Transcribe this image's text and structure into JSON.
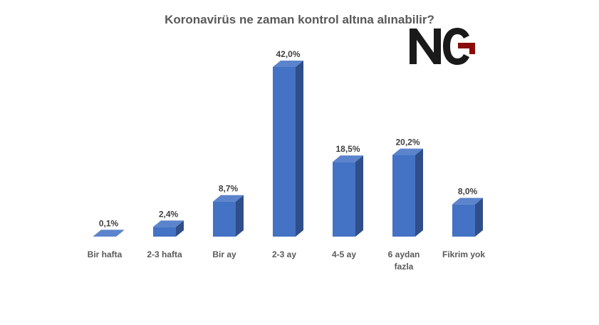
{
  "logo_text": "NG",
  "colors": {
    "bar_front": "#4472C4",
    "bar_side": "#2F4E8A",
    "bar_top": "#5B84CC",
    "logo_black": "#1a1a1a",
    "logo_red": "#8B0A0A"
  },
  "chart_data": {
    "type": "bar",
    "title": "Koronavirüs ne zaman kontrol altına alınabilir?",
    "categories": [
      [
        "Bir hafta"
      ],
      [
        "2-3 hafta"
      ],
      [
        "Bir ay"
      ],
      [
        "2-3 ay"
      ],
      [
        "4-5 ay"
      ],
      [
        "6 aydan",
        "fazla"
      ],
      [
        "Fikrim yok"
      ]
    ],
    "values": [
      0.1,
      2.4,
      8.7,
      42.0,
      18.5,
      20.2,
      8.0
    ],
    "value_labels": [
      "0,1%",
      "2,4%",
      "8,7%",
      "42,0%",
      "18,5%",
      "20,2%",
      "8,0%"
    ],
    "unit": "%",
    "ylim": [
      0,
      42
    ],
    "grid": false,
    "legend": "none",
    "style": "3d-column"
  }
}
